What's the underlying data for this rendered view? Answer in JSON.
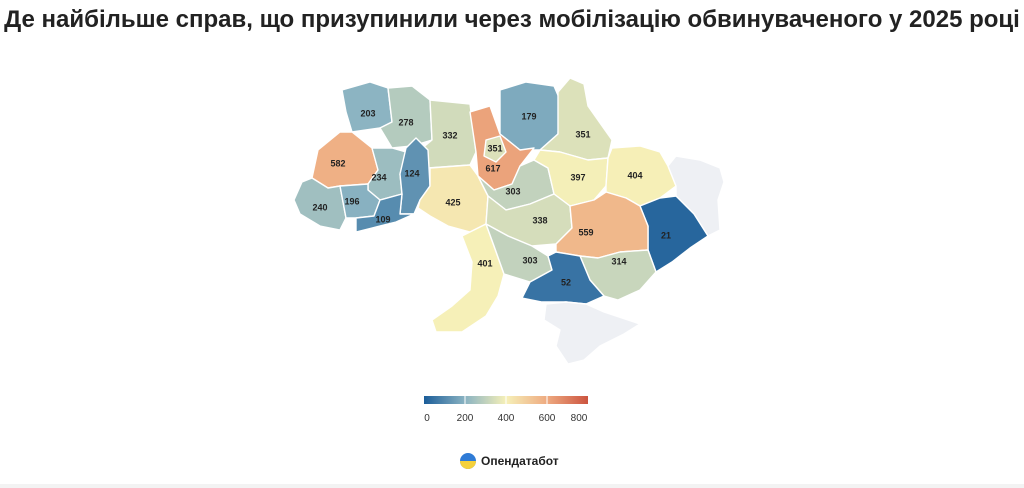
{
  "title": "Де найбільше справ, що призупинили через мобілізацію обвинуваченого у 2025 році",
  "brand": {
    "name": "Опендатабот",
    "logo_icon": "opendatabot-logo-icon"
  },
  "legend": {
    "ticks": [
      "0",
      "200",
      "400",
      "600",
      "800"
    ],
    "min": 0,
    "max": 800,
    "colors": [
      "#1b5d99",
      "#8ab3c2",
      "#f6f0b8",
      "#eeaa80",
      "#cc5440"
    ]
  },
  "chart_data": {
    "type": "choropleth",
    "metric": "suspended cases",
    "regions": [
      {
        "id": "volyn",
        "value": 203,
        "label": "203"
      },
      {
        "id": "rivne",
        "value": 278,
        "label": "278"
      },
      {
        "id": "zhytomyr",
        "value": 332,
        "label": "332"
      },
      {
        "id": "kyiv-oblast",
        "value": 617,
        "label": "617"
      },
      {
        "id": "kyiv-city",
        "value": 351,
        "label": "351"
      },
      {
        "id": "chernihiv",
        "value": 179,
        "label": "179"
      },
      {
        "id": "sumy",
        "value": 351,
        "label": "351"
      },
      {
        "id": "lviv",
        "value": 582,
        "label": "582"
      },
      {
        "id": "ternopil",
        "value": 234,
        "label": "234"
      },
      {
        "id": "khmelnytskyi",
        "value": 124,
        "label": "124"
      },
      {
        "id": "zakarpattia",
        "value": 240,
        "label": "240"
      },
      {
        "id": "ivano-frankivsk",
        "value": 196,
        "label": "196"
      },
      {
        "id": "chernivtsi",
        "value": 109,
        "label": "109"
      },
      {
        "id": "vinnytsia",
        "value": 425,
        "label": "425"
      },
      {
        "id": "cherkasy",
        "value": 303,
        "label": "303"
      },
      {
        "id": "poltava",
        "value": 397,
        "label": "397"
      },
      {
        "id": "kharkiv",
        "value": 404,
        "label": "404"
      },
      {
        "id": "kirovohrad",
        "value": 338,
        "label": "338"
      },
      {
        "id": "dnipropetrovsk",
        "value": 559,
        "label": "559"
      },
      {
        "id": "donetsk",
        "value": 21,
        "label": "21"
      },
      {
        "id": "luhansk",
        "value": null,
        "label": ""
      },
      {
        "id": "odesa",
        "value": 401,
        "label": "401"
      },
      {
        "id": "mykolaiv",
        "value": 303,
        "label": "303"
      },
      {
        "id": "zaporizhzhia",
        "value": 314,
        "label": "314"
      },
      {
        "id": "kherson",
        "value": 52,
        "label": "52"
      },
      {
        "id": "crimea",
        "value": null,
        "label": ""
      }
    ]
  }
}
